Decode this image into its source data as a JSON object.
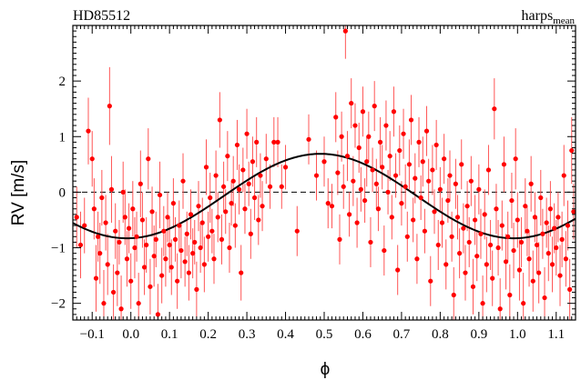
{
  "chart_data": {
    "type": "scatter",
    "title": "HD85512",
    "instrument": {
      "base": "harps",
      "subscript": "mean"
    },
    "xlabel": "ϕ",
    "ylabel": "RV [m/s]",
    "xlim": [
      -0.15,
      1.15
    ],
    "ylim": [
      -2.3,
      3.0
    ],
    "x_ticks": [
      -0.1,
      0.0,
      0.1,
      0.2,
      0.3,
      0.4,
      0.5,
      0.6,
      0.7,
      0.8,
      0.9,
      1.0,
      1.1
    ],
    "x_tick_labels": [
      "−0.1",
      "0.0",
      "0.1",
      "0.2",
      "0.3",
      "0.4",
      "0.5",
      "0.6",
      "0.7",
      "0.8",
      "0.9",
      "1.0",
      "1.1"
    ],
    "y_ticks": [
      -2,
      -1,
      0,
      1,
      2
    ],
    "y_tick_labels": [
      "−2",
      "−1",
      "0",
      "1",
      "2"
    ],
    "zero_line": "dashed",
    "grid": false,
    "colors": {
      "points": "#ff0000",
      "errorbars": "#ff5555",
      "model": "#000000"
    },
    "model": {
      "type": "sinusoid",
      "amplitude": 0.76,
      "offset": -0.07,
      "peak_phase": 0.49
    },
    "points": [
      {
        "x": -0.14,
        "y": -0.45,
        "e": 0.55
      },
      {
        "x": -0.13,
        "y": -0.95,
        "e": 0.6
      },
      {
        "x": -0.12,
        "y": -0.6,
        "e": 0.5
      },
      {
        "x": -0.11,
        "y": 1.1,
        "e": 0.6
      },
      {
        "x": -0.1,
        "y": 0.6,
        "e": 0.5
      },
      {
        "x": -0.095,
        "y": -0.3,
        "e": 0.55
      },
      {
        "x": -0.09,
        "y": -1.55,
        "e": 0.6
      },
      {
        "x": -0.085,
        "y": -0.8,
        "e": 0.45
      },
      {
        "x": -0.08,
        "y": -1.1,
        "e": 0.55
      },
      {
        "x": -0.075,
        "y": -0.1,
        "e": 0.5
      },
      {
        "x": -0.07,
        "y": -2.0,
        "e": 0.6
      },
      {
        "x": -0.065,
        "y": -0.55,
        "e": 0.5
      },
      {
        "x": -0.06,
        "y": -1.3,
        "e": 0.55
      },
      {
        "x": -0.055,
        "y": 1.55,
        "e": 0.7
      },
      {
        "x": -0.05,
        "y": 0.05,
        "e": 0.6
      },
      {
        "x": -0.045,
        "y": -1.8,
        "e": 0.5
      },
      {
        "x": -0.04,
        "y": -0.7,
        "e": 0.5
      },
      {
        "x": -0.035,
        "y": -1.45,
        "e": 0.6
      },
      {
        "x": -0.03,
        "y": -0.9,
        "e": 0.4
      },
      {
        "x": -0.025,
        "y": -2.1,
        "e": 0.6
      },
      {
        "x": -0.02,
        "y": 0.0,
        "e": 0.55
      },
      {
        "x": -0.015,
        "y": -0.45,
        "e": 0.5
      },
      {
        "x": -0.01,
        "y": -1.2,
        "e": 0.5
      },
      {
        "x": -0.005,
        "y": -0.65,
        "e": 0.45
      },
      {
        "x": 0.0,
        "y": -1.6,
        "e": 0.5
      },
      {
        "x": 0.005,
        "y": -0.3,
        "e": 0.5
      },
      {
        "x": 0.01,
        "y": -1.0,
        "e": 0.55
      },
      {
        "x": 0.015,
        "y": -0.8,
        "e": 0.45
      },
      {
        "x": 0.02,
        "y": -2.0,
        "e": 0.55
      },
      {
        "x": 0.025,
        "y": 0.15,
        "e": 0.6
      },
      {
        "x": 0.03,
        "y": -0.5,
        "e": 0.5
      },
      {
        "x": 0.035,
        "y": -1.35,
        "e": 0.5
      },
      {
        "x": 0.04,
        "y": -0.95,
        "e": 0.5
      },
      {
        "x": 0.045,
        "y": 0.6,
        "e": 0.55
      },
      {
        "x": 0.05,
        "y": -1.7,
        "e": 0.5
      },
      {
        "x": 0.055,
        "y": -0.35,
        "e": 0.45
      },
      {
        "x": 0.06,
        "y": -1.15,
        "e": 0.55
      },
      {
        "x": 0.065,
        "y": -0.85,
        "e": 0.5
      },
      {
        "x": 0.07,
        "y": -2.2,
        "e": 0.55
      },
      {
        "x": 0.075,
        "y": -0.05,
        "e": 0.6
      },
      {
        "x": 0.08,
        "y": -1.5,
        "e": 0.5
      },
      {
        "x": 0.085,
        "y": -0.7,
        "e": 0.45
      },
      {
        "x": 0.09,
        "y": -1.2,
        "e": 0.5
      },
      {
        "x": 0.095,
        "y": -0.45,
        "e": 0.45
      },
      {
        "x": 0.1,
        "y": -0.95,
        "e": 0.5
      },
      {
        "x": 0.105,
        "y": -1.35,
        "e": 0.5
      },
      {
        "x": 0.11,
        "y": -0.2,
        "e": 0.45
      },
      {
        "x": 0.115,
        "y": -0.85,
        "e": 0.4
      },
      {
        "x": 0.12,
        "y": -1.6,
        "e": 0.5
      },
      {
        "x": 0.125,
        "y": -0.6,
        "e": 0.45
      },
      {
        "x": 0.13,
        "y": -1.05,
        "e": 0.5
      },
      {
        "x": 0.135,
        "y": 0.2,
        "e": 0.5
      },
      {
        "x": 0.14,
        "y": -1.25,
        "e": 0.45
      },
      {
        "x": 0.145,
        "y": -0.75,
        "e": 0.4
      },
      {
        "x": 0.15,
        "y": -1.45,
        "e": 0.5
      },
      {
        "x": 0.155,
        "y": -0.4,
        "e": 0.45
      },
      {
        "x": 0.16,
        "y": -1.1,
        "e": 0.45
      },
      {
        "x": 0.165,
        "y": -0.9,
        "e": 0.4
      },
      {
        "x": 0.17,
        "y": -1.75,
        "e": 0.5
      },
      {
        "x": 0.175,
        "y": -0.25,
        "e": 0.45
      },
      {
        "x": 0.18,
        "y": -1.0,
        "e": 0.45
      },
      {
        "x": 0.185,
        "y": -0.55,
        "e": 0.45
      },
      {
        "x": 0.19,
        "y": -1.3,
        "e": 0.5
      },
      {
        "x": 0.195,
        "y": 0.45,
        "e": 0.5
      },
      {
        "x": 0.2,
        "y": -0.8,
        "e": 0.45
      },
      {
        "x": 0.205,
        "y": -0.1,
        "e": 0.45
      },
      {
        "x": 0.21,
        "y": -0.7,
        "e": 0.4
      },
      {
        "x": 0.215,
        "y": -1.2,
        "e": 0.45
      },
      {
        "x": 0.22,
        "y": 0.3,
        "e": 0.45
      },
      {
        "x": 0.225,
        "y": -0.45,
        "e": 0.45
      },
      {
        "x": 0.23,
        "y": 1.3,
        "e": 0.5
      },
      {
        "x": 0.235,
        "y": -0.85,
        "e": 0.45
      },
      {
        "x": 0.24,
        "y": 0.1,
        "e": 0.45
      },
      {
        "x": 0.245,
        "y": -0.35,
        "e": 0.4
      },
      {
        "x": 0.25,
        "y": 0.65,
        "e": 0.45
      },
      {
        "x": 0.255,
        "y": -1.0,
        "e": 0.45
      },
      {
        "x": 0.26,
        "y": -0.2,
        "e": 0.4
      },
      {
        "x": 0.265,
        "y": 0.2,
        "e": 0.45
      },
      {
        "x": 0.27,
        "y": -0.6,
        "e": 0.4
      },
      {
        "x": 0.275,
        "y": 0.85,
        "e": 0.45
      },
      {
        "x": 0.28,
        "y": 0.05,
        "e": 0.45
      },
      {
        "x": 0.285,
        "y": -1.45,
        "e": 0.5
      },
      {
        "x": 0.29,
        "y": 0.4,
        "e": 0.4
      },
      {
        "x": 0.295,
        "y": -0.3,
        "e": 0.45
      },
      {
        "x": 0.3,
        "y": 1.05,
        "e": 0.45
      },
      {
        "x": 0.305,
        "y": 0.15,
        "e": 0.4
      },
      {
        "x": 0.31,
        "y": -0.75,
        "e": 0.45
      },
      {
        "x": 0.315,
        "y": 0.55,
        "e": 0.45
      },
      {
        "x": 0.32,
        "y": -0.1,
        "e": 0.4
      },
      {
        "x": 0.325,
        "y": 0.9,
        "e": 0.45
      },
      {
        "x": 0.33,
        "y": -0.5,
        "e": 0.45
      },
      {
        "x": 0.335,
        "y": 0.3,
        "e": 0.4
      },
      {
        "x": 0.34,
        "y": -0.25,
        "e": 0.45
      },
      {
        "x": 0.35,
        "y": 0.6,
        "e": 0.45
      },
      {
        "x": 0.36,
        "y": 0.1,
        "e": 0.4
      },
      {
        "x": 0.37,
        "y": 0.9,
        "e": 0.45
      },
      {
        "x": 0.38,
        "y": 0.9,
        "e": 0.45
      },
      {
        "x": 0.39,
        "y": 0.1,
        "e": 0.4
      },
      {
        "x": 0.4,
        "y": 0.45,
        "e": 0.4
      },
      {
        "x": 0.43,
        "y": -0.7,
        "e": 0.45
      },
      {
        "x": 0.46,
        "y": 0.95,
        "e": 0.45
      },
      {
        "x": 0.48,
        "y": 0.3,
        "e": 0.45
      },
      {
        "x": 0.5,
        "y": 0.55,
        "e": 0.45
      },
      {
        "x": 0.51,
        "y": -0.2,
        "e": 0.45
      },
      {
        "x": 0.52,
        "y": -0.25,
        "e": 0.4
      },
      {
        "x": 0.53,
        "y": 1.35,
        "e": 0.45
      },
      {
        "x": 0.535,
        "y": 0.35,
        "e": 0.4
      },
      {
        "x": 0.54,
        "y": -0.85,
        "e": 0.45
      },
      {
        "x": 0.545,
        "y": 1.0,
        "e": 0.45
      },
      {
        "x": 0.55,
        "y": 0.1,
        "e": 0.4
      },
      {
        "x": 0.555,
        "y": 2.9,
        "e": 0.5
      },
      {
        "x": 0.56,
        "y": 0.65,
        "e": 0.45
      },
      {
        "x": 0.565,
        "y": -0.4,
        "e": 0.4
      },
      {
        "x": 0.57,
        "y": 1.6,
        "e": 0.45
      },
      {
        "x": 0.575,
        "y": 0.2,
        "e": 0.45
      },
      {
        "x": 0.58,
        "y": 1.2,
        "e": 0.4
      },
      {
        "x": 0.585,
        "y": -0.55,
        "e": 0.45
      },
      {
        "x": 0.59,
        "y": 0.8,
        "e": 0.45
      },
      {
        "x": 0.595,
        "y": 0.05,
        "e": 0.4
      },
      {
        "x": 0.6,
        "y": 1.45,
        "e": 0.45
      },
      {
        "x": 0.605,
        "y": -0.15,
        "e": 0.4
      },
      {
        "x": 0.61,
        "y": 0.55,
        "e": 0.45
      },
      {
        "x": 0.615,
        "y": 1.0,
        "e": 0.45
      },
      {
        "x": 0.62,
        "y": -0.9,
        "e": 0.45
      },
      {
        "x": 0.625,
        "y": 0.4,
        "e": 0.4
      },
      {
        "x": 0.63,
        "y": 1.55,
        "e": 0.45
      },
      {
        "x": 0.635,
        "y": 0.15,
        "e": 0.45
      },
      {
        "x": 0.64,
        "y": -0.3,
        "e": 0.4
      },
      {
        "x": 0.645,
        "y": 0.9,
        "e": 0.45
      },
      {
        "x": 0.65,
        "y": 0.45,
        "e": 0.4
      },
      {
        "x": 0.655,
        "y": -1.05,
        "e": 0.45
      },
      {
        "x": 0.66,
        "y": 1.2,
        "e": 0.45
      },
      {
        "x": 0.665,
        "y": 0.0,
        "e": 0.4
      },
      {
        "x": 0.67,
        "y": 0.65,
        "e": 0.45
      },
      {
        "x": 0.675,
        "y": -0.45,
        "e": 0.4
      },
      {
        "x": 0.68,
        "y": 1.45,
        "e": 0.45
      },
      {
        "x": 0.685,
        "y": 0.3,
        "e": 0.4
      },
      {
        "x": 0.69,
        "y": -1.4,
        "e": 0.45
      },
      {
        "x": 0.695,
        "y": 0.75,
        "e": 0.45
      },
      {
        "x": 0.7,
        "y": -0.2,
        "e": 0.4
      },
      {
        "x": 0.705,
        "y": 1.05,
        "e": 0.45
      },
      {
        "x": 0.71,
        "y": 0.1,
        "e": 0.4
      },
      {
        "x": 0.715,
        "y": -0.8,
        "e": 0.45
      },
      {
        "x": 0.72,
        "y": 0.5,
        "e": 0.45
      },
      {
        "x": 0.725,
        "y": 1.3,
        "e": 0.45
      },
      {
        "x": 0.73,
        "y": -0.5,
        "e": 0.4
      },
      {
        "x": 0.735,
        "y": 0.25,
        "e": 0.45
      },
      {
        "x": 0.74,
        "y": -1.2,
        "e": 0.45
      },
      {
        "x": 0.745,
        "y": 0.9,
        "e": 0.45
      },
      {
        "x": 0.75,
        "y": -0.1,
        "e": 0.4
      },
      {
        "x": 0.755,
        "y": 0.55,
        "e": 0.45
      },
      {
        "x": 0.76,
        "y": -0.7,
        "e": 0.4
      },
      {
        "x": 0.765,
        "y": 1.1,
        "e": 0.45
      },
      {
        "x": 0.77,
        "y": 0.2,
        "e": 0.4
      },
      {
        "x": 0.775,
        "y": -1.6,
        "e": 0.45
      },
      {
        "x": 0.78,
        "y": 0.4,
        "e": 0.45
      },
      {
        "x": 0.785,
        "y": -0.35,
        "e": 0.4
      },
      {
        "x": 0.79,
        "y": 0.85,
        "e": 0.45
      },
      {
        "x": 0.795,
        "y": -0.95,
        "e": 0.45
      },
      {
        "x": 0.8,
        "y": 0.05,
        "e": 0.4
      },
      {
        "x": 0.805,
        "y": -0.55,
        "e": 0.45
      },
      {
        "x": 0.81,
        "y": 0.6,
        "e": 0.45
      },
      {
        "x": 0.815,
        "y": -1.3,
        "e": 0.45
      },
      {
        "x": 0.82,
        "y": -0.15,
        "e": 0.4
      },
      {
        "x": 0.825,
        "y": 0.3,
        "e": 0.45
      },
      {
        "x": 0.83,
        "y": -0.8,
        "e": 0.45
      },
      {
        "x": 0.835,
        "y": -1.85,
        "e": 0.5
      },
      {
        "x": 0.84,
        "y": 0.15,
        "e": 0.45
      },
      {
        "x": 0.845,
        "y": -0.45,
        "e": 0.4
      },
      {
        "x": 0.85,
        "y": -1.1,
        "e": 0.45
      },
      {
        "x": 0.855,
        "y": 0.5,
        "e": 0.45
      },
      {
        "x": 0.86,
        "y": -0.65,
        "e": 0.45
      },
      {
        "x": 0.865,
        "y": -1.45,
        "e": 0.5
      },
      {
        "x": 0.87,
        "y": -0.25,
        "e": 0.45
      },
      {
        "x": 0.875,
        "y": -0.9,
        "e": 0.45
      },
      {
        "x": 0.88,
        "y": 0.2,
        "e": 0.45
      },
      {
        "x": 0.885,
        "y": -1.7,
        "e": 0.5
      },
      {
        "x": 0.89,
        "y": -0.5,
        "e": 0.45
      },
      {
        "x": 0.895,
        "y": -1.15,
        "e": 0.45
      },
      {
        "x": 0.9,
        "y": 0.05,
        "e": 0.45
      },
      {
        "x": 0.905,
        "y": -0.75,
        "e": 0.45
      },
      {
        "x": 0.91,
        "y": -2.0,
        "e": 0.5
      },
      {
        "x": 0.915,
        "y": -0.4,
        "e": 0.45
      },
      {
        "x": 0.92,
        "y": -1.3,
        "e": 0.5
      },
      {
        "x": 0.925,
        "y": 0.4,
        "e": 0.45
      },
      {
        "x": 0.93,
        "y": -0.95,
        "e": 0.45
      },
      {
        "x": 0.935,
        "y": -1.55,
        "e": 0.5
      },
      {
        "x": 0.94,
        "y": 1.5,
        "e": 0.55
      },
      {
        "x": 0.945,
        "y": -0.3,
        "e": 0.45
      },
      {
        "x": 0.95,
        "y": -1.0,
        "e": 0.5
      },
      {
        "x": 0.955,
        "y": -2.1,
        "e": 0.55
      },
      {
        "x": 0.96,
        "y": -0.6,
        "e": 0.45
      },
      {
        "x": 0.965,
        "y": 0.5,
        "e": 0.5
      },
      {
        "x": 0.97,
        "y": -1.25,
        "e": 0.5
      },
      {
        "x": 0.975,
        "y": -0.8,
        "e": 0.45
      },
      {
        "x": 0.98,
        "y": -1.85,
        "e": 0.55
      },
      {
        "x": 0.985,
        "y": -0.15,
        "e": 0.5
      },
      {
        "x": 0.99,
        "y": -1.05,
        "e": 0.5
      },
      {
        "x": 0.995,
        "y": 0.6,
        "e": 0.55
      },
      {
        "x": 1.0,
        "y": -0.5,
        "e": 0.5
      },
      {
        "x": 1.005,
        "y": -1.4,
        "e": 0.55
      },
      {
        "x": 1.01,
        "y": -0.9,
        "e": 0.45
      },
      {
        "x": 1.015,
        "y": -2.0,
        "e": 0.55
      },
      {
        "x": 1.02,
        "y": -0.25,
        "e": 0.5
      },
      {
        "x": 1.025,
        "y": -0.7,
        "e": 0.45
      },
      {
        "x": 1.03,
        "y": -1.2,
        "e": 0.5
      },
      {
        "x": 1.035,
        "y": 0.15,
        "e": 0.5
      },
      {
        "x": 1.04,
        "y": -1.6,
        "e": 0.55
      },
      {
        "x": 1.045,
        "y": -0.45,
        "e": 0.45
      },
      {
        "x": 1.05,
        "y": -0.95,
        "e": 0.5
      },
      {
        "x": 1.055,
        "y": -1.45,
        "e": 0.55
      },
      {
        "x": 1.06,
        "y": -0.1,
        "e": 0.5
      },
      {
        "x": 1.065,
        "y": -0.75,
        "e": 0.45
      },
      {
        "x": 1.07,
        "y": -1.9,
        "e": 0.55
      },
      {
        "x": 1.075,
        "y": -0.55,
        "e": 0.45
      },
      {
        "x": 1.08,
        "y": -1.1,
        "e": 0.5
      },
      {
        "x": 1.085,
        "y": -0.3,
        "e": 0.5
      },
      {
        "x": 1.09,
        "y": -1.3,
        "e": 0.5
      },
      {
        "x": 1.095,
        "y": -0.65,
        "e": 0.45
      },
      {
        "x": 1.1,
        "y": -1.0,
        "e": 0.5
      },
      {
        "x": 1.105,
        "y": -0.45,
        "e": 0.45
      },
      {
        "x": 1.11,
        "y": -1.5,
        "e": 0.55
      },
      {
        "x": 1.115,
        "y": -0.85,
        "e": 0.5
      },
      {
        "x": 1.12,
        "y": 0.3,
        "e": 0.55
      },
      {
        "x": 1.125,
        "y": -1.2,
        "e": 0.5
      },
      {
        "x": 1.13,
        "y": -0.6,
        "e": 0.45
      },
      {
        "x": 1.135,
        "y": -1.75,
        "e": 0.55
      },
      {
        "x": 1.14,
        "y": 0.75,
        "e": 0.6
      },
      {
        "x": 1.145,
        "y": -0.35,
        "e": 0.5
      }
    ]
  }
}
